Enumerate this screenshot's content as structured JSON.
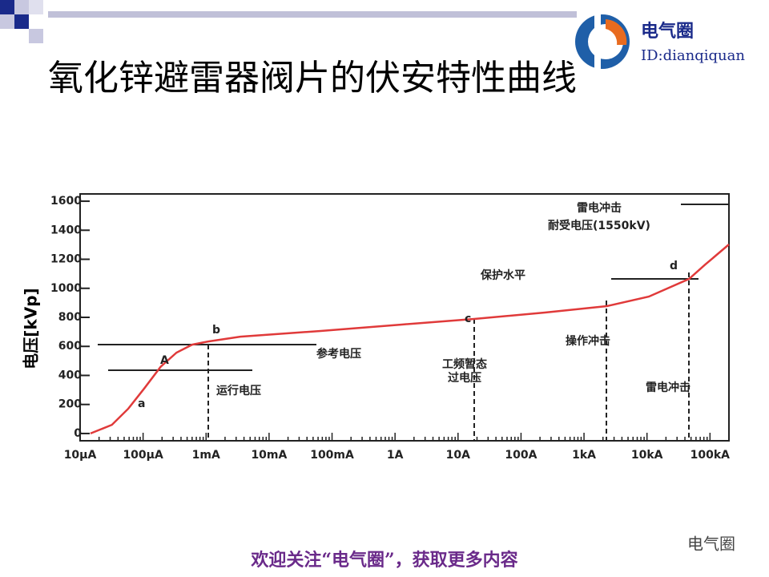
{
  "slide": {
    "title": "氧化锌避雷器阀片的伏安特性曲线",
    "logo_name": "电气圈",
    "logo_id": "ID:dianqiquan",
    "footer": "欢迎关注“电气圈”，获取更多内容",
    "watermark": "电气圈"
  },
  "chart_data": {
    "type": "line",
    "xscale": "log",
    "y_label": "电压[kVp]",
    "x": [
      1.46e-05,
      3.2e-05,
      5.8e-05,
      0.000104,
      0.00019,
      0.00034,
      0.0006,
      0.00108,
      0.0035,
      0.066,
      1.23,
      18,
      240,
      2300,
      10700,
      46500,
      84000,
      200000
    ],
    "series": [
      {
        "name": "伏安特性",
        "color": "#e03a3a",
        "values": [
          0,
          60,
          170,
          310,
          460,
          557,
          612,
          634,
          667,
          706,
          750,
          789,
          833,
          877,
          943,
          1065,
          1164,
          1302
        ]
      }
    ],
    "xlim": [
      1e-05,
      200000
    ],
    "ylim": [
      -50,
      1650
    ],
    "xticks": [
      {
        "value": 1e-05,
        "label": "10μA"
      },
      {
        "value": 0.0001,
        "label": "100μA"
      },
      {
        "value": 0.001,
        "label": "1mA"
      },
      {
        "value": 0.01,
        "label": "10mA"
      },
      {
        "value": 0.1,
        "label": "100mA"
      },
      {
        "value": 1,
        "label": "1A"
      },
      {
        "value": 10,
        "label": "10A"
      },
      {
        "value": 100,
        "label": "100A"
      },
      {
        "value": 1000,
        "label": "1kA"
      },
      {
        "value": 10000,
        "label": "10kA"
      },
      {
        "value": 100000,
        "label": "100kA"
      }
    ],
    "yticks": [
      0,
      200,
      400,
      600,
      800,
      1000,
      1200,
      1400,
      1600
    ],
    "annotations": [
      "a",
      "A",
      "b",
      "c",
      "d",
      "参考电压",
      "运行电压",
      "保护水平",
      "操作冲击",
      "雷电冲击",
      "工频暂态",
      "过电压",
      "雷电冲击",
      "耐受电压(1550kV)"
    ]
  }
}
